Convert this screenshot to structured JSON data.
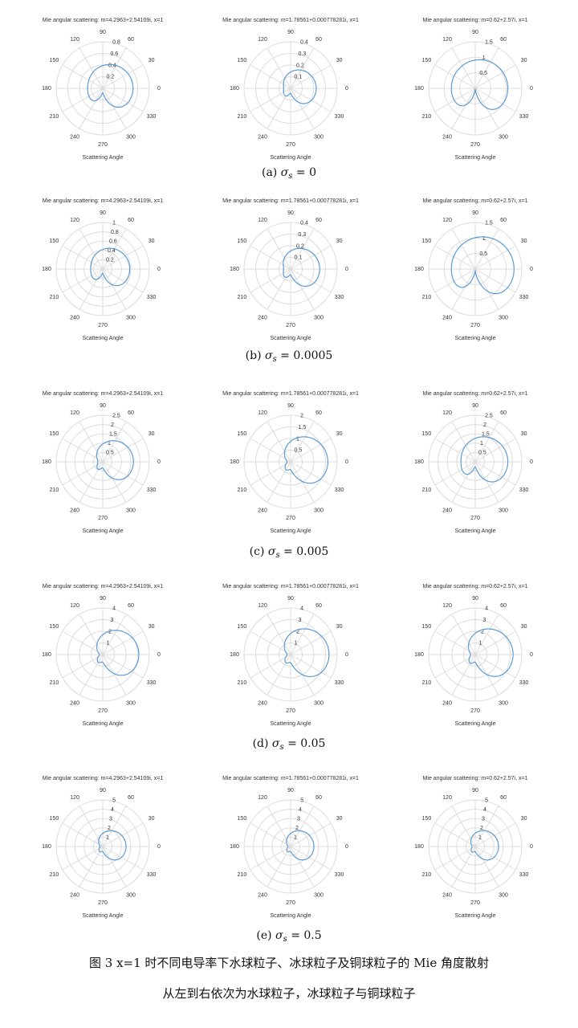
{
  "figure_caption": "图 3    x=1 时不同电导率下水球粒子、冰球粒子及铜球粒子的 Mie 角度散射",
  "figure_subcaption": "从左到右依次为水球粒子，冰球粒子与铜球粒子",
  "colors": {
    "curve": "#5b9bd5",
    "grid": "#dcdcdc",
    "text": "#333333"
  },
  "angle_labels": [
    "0",
    "30",
    "60",
    "90",
    "120",
    "150",
    "180",
    "210",
    "240",
    "270",
    "300",
    "330"
  ],
  "rows": [
    {
      "label_prefix": "(a)",
      "sigma_symbol": "σ",
      "sigma_sub": "s",
      "sigma_value": "= 0",
      "plots": [
        {
          "title": "Mie angular scattering: m=4.2963+2.54109i, x=1",
          "xlabel": "Scattering Angle",
          "rmax": 0.8,
          "rticks": [
            "0.2",
            "0.4",
            "0.6",
            "0.8"
          ],
          "forward": 0.52,
          "backward": 0.26,
          "notch": 0.1
        },
        {
          "title": "Mie angular scattering: m=1.78561+0.000778281i, x=1",
          "xlabel": "Scattering Angle",
          "rmax": 0.4,
          "rticks": [
            "0.1",
            "0.2",
            "0.3",
            "0.4"
          ],
          "forward": 0.22,
          "backward": 0.06,
          "notch": 0.02
        },
        {
          "title": "Mie angular scattering: m=0.62+2.57i, x=1",
          "xlabel": "Scattering Angle",
          "rmax": 1.5,
          "rticks": [
            "0.5",
            "1",
            "1.5"
          ],
          "forward": 1.05,
          "backward": 0.77,
          "notch": 0.4
        }
      ]
    },
    {
      "label_prefix": "(b)",
      "sigma_symbol": "σ",
      "sigma_sub": "s",
      "sigma_value": "= 0.0005",
      "plots": [
        {
          "title": "Mie angular scattering: m=4.2963+2.54109i, x=1",
          "xlabel": "Scattering Angle",
          "rmax": 1.0,
          "rticks": [
            "0.2",
            "0.4",
            "0.6",
            "0.8",
            "1"
          ],
          "forward": 0.58,
          "backward": 0.26,
          "notch": 0.1
        },
        {
          "title": "Mie angular scattering: m=1.78561+0.000778281i, x=1",
          "xlabel": "Scattering Angle",
          "rmax": 0.4,
          "rticks": [
            "0.1",
            "0.2",
            "0.3",
            "0.4"
          ],
          "forward": 0.25,
          "backward": 0.06,
          "notch": 0.02
        },
        {
          "title": "Mie angular scattering: m=0.62+2.57i, x=1",
          "xlabel": "Scattering Angle",
          "rmax": 1.5,
          "rticks": [
            "0.5",
            "1",
            "1.5"
          ],
          "forward": 1.25,
          "backward": 0.77,
          "notch": 0.4
        }
      ]
    },
    {
      "label_prefix": "(c)",
      "sigma_symbol": "σ",
      "sigma_sub": "s",
      "sigma_value": "= 0.005",
      "plots": [
        {
          "title": "Mie angular scattering: m=4.2963+2.54109i, x=1",
          "xlabel": "Scattering Angle",
          "rmax": 2.5,
          "rticks": [
            "0.5",
            "1",
            "1.5",
            "2",
            "2.5"
          ],
          "forward": 1.65,
          "backward": 0.26,
          "notch": 0.1
        },
        {
          "title": "Mie angular scattering: m=1.78561+0.000778281i, x=1",
          "xlabel": "Scattering Angle",
          "rmax": 2.0,
          "rticks": [
            "0.5",
            "1",
            "1.5",
            "2"
          ],
          "forward": 1.6,
          "backward": 0.15,
          "notch": 0.05
        },
        {
          "title": "Mie angular scattering: m=0.62+2.57i, x=1",
          "xlabel": "Scattering Angle",
          "rmax": 2.5,
          "rticks": [
            "0.5",
            "1",
            "1.5",
            "2",
            "2.5"
          ],
          "forward": 1.75,
          "backward": 0.77,
          "notch": 0.3
        }
      ]
    },
    {
      "label_prefix": "(d)",
      "sigma_symbol": "σ",
      "sigma_sub": "s",
      "sigma_value": "= 0.05",
      "plots": [
        {
          "title": "Mie angular scattering: m=4.2963+2.54109i, x=1",
          "xlabel": "Scattering Angle",
          "rmax": 4,
          "rticks": [
            "1",
            "2",
            "3",
            "4"
          ],
          "forward": 3.1,
          "backward": 0.3,
          "notch": 0.1
        },
        {
          "title": "Mie angular scattering: m=1.78561+0.000778281i, x=1",
          "xlabel": "Scattering Angle",
          "rmax": 4,
          "rticks": [
            "1",
            "2",
            "3",
            "4"
          ],
          "forward": 3.3,
          "backward": 0.3,
          "notch": 0.1
        },
        {
          "title": "Mie angular scattering: m=0.62+2.57i, x=1",
          "xlabel": "Scattering Angle",
          "rmax": 4,
          "rticks": [
            "1",
            "2",
            "3",
            "4"
          ],
          "forward": 3.25,
          "backward": 0.4,
          "notch": 0.15
        }
      ]
    },
    {
      "label_prefix": "(e)",
      "sigma_symbol": "σ",
      "sigma_sub": "s",
      "sigma_value": "= 0.5",
      "plots": [
        {
          "title": "Mie angular scattering: m=4.2963+2.54109i, x=1",
          "xlabel": "Scattering Angle",
          "rmax": 5,
          "rticks": [
            "1",
            "2",
            "3",
            "4",
            "5"
          ],
          "forward": 2.5,
          "backward": 0.3,
          "notch": 0.1
        },
        {
          "title": "Mie angular scattering: m=1.78561+0.000778281i, x=1",
          "xlabel": "Scattering Angle",
          "rmax": 5,
          "rticks": [
            "1",
            "2",
            "3",
            "4",
            "5"
          ],
          "forward": 2.5,
          "backward": 0.3,
          "notch": 0.1
        },
        {
          "title": "Mie angular scattering: m=0.62+2.57i, x=1",
          "xlabel": "Scattering Angle",
          "rmax": 5,
          "rticks": [
            "1",
            "2",
            "3",
            "4",
            "5"
          ],
          "forward": 2.5,
          "backward": 0.35,
          "notch": 0.1
        }
      ]
    }
  ],
  "chart_data": [
    {
      "type": "polar",
      "panel": "a-water",
      "title": "Mie angular scattering: m=4.2963+2.54109i, x=1",
      "xlabel": "Scattering Angle",
      "rlim": [
        0,
        0.8
      ],
      "forward_intensity": 0.52,
      "backward_intensity": 0.26
    },
    {
      "type": "polar",
      "panel": "a-ice",
      "title": "Mie angular scattering: m=1.78561+0.000778281i, x=1",
      "xlabel": "Scattering Angle",
      "rlim": [
        0,
        0.4
      ],
      "forward_intensity": 0.22,
      "backward_intensity": 0.06
    },
    {
      "type": "polar",
      "panel": "a-copper",
      "title": "Mie angular scattering: m=0.62+2.57i, x=1",
      "xlabel": "Scattering Angle",
      "rlim": [
        0,
        1.5
      ],
      "forward_intensity": 1.05,
      "backward_intensity": 0.77
    },
    {
      "type": "polar",
      "panel": "b-water",
      "rlim": [
        0,
        1
      ],
      "forward_intensity": 0.58,
      "backward_intensity": 0.26
    },
    {
      "type": "polar",
      "panel": "b-ice",
      "rlim": [
        0,
        0.4
      ],
      "forward_intensity": 0.25,
      "backward_intensity": 0.06
    },
    {
      "type": "polar",
      "panel": "b-copper",
      "rlim": [
        0,
        1.5
      ],
      "forward_intensity": 1.25,
      "backward_intensity": 0.77
    },
    {
      "type": "polar",
      "panel": "c-water",
      "rlim": [
        0,
        2.5
      ],
      "forward_intensity": 1.65,
      "backward_intensity": 0.26
    },
    {
      "type": "polar",
      "panel": "c-ice",
      "rlim": [
        0,
        2
      ],
      "forward_intensity": 1.6,
      "backward_intensity": 0.15
    },
    {
      "type": "polar",
      "panel": "c-copper",
      "rlim": [
        0,
        2.5
      ],
      "forward_intensity": 1.75,
      "backward_intensity": 0.77
    },
    {
      "type": "polar",
      "panel": "d-water",
      "rlim": [
        0,
        4
      ],
      "forward_intensity": 3.1,
      "backward_intensity": 0.3
    },
    {
      "type": "polar",
      "panel": "d-ice",
      "rlim": [
        0,
        4
      ],
      "forward_intensity": 3.3,
      "backward_intensity": 0.3
    },
    {
      "type": "polar",
      "panel": "d-copper",
      "rlim": [
        0,
        4
      ],
      "forward_intensity": 3.25,
      "backward_intensity": 0.4
    },
    {
      "type": "polar",
      "panel": "e-water",
      "rlim": [
        0,
        5
      ],
      "forward_intensity": 2.5,
      "backward_intensity": 0.3
    },
    {
      "type": "polar",
      "panel": "e-ice",
      "rlim": [
        0,
        5
      ],
      "forward_intensity": 2.5,
      "backward_intensity": 0.3
    },
    {
      "type": "polar",
      "panel": "e-copper",
      "rlim": [
        0,
        5
      ],
      "forward_intensity": 2.5,
      "backward_intensity": 0.35
    }
  ]
}
